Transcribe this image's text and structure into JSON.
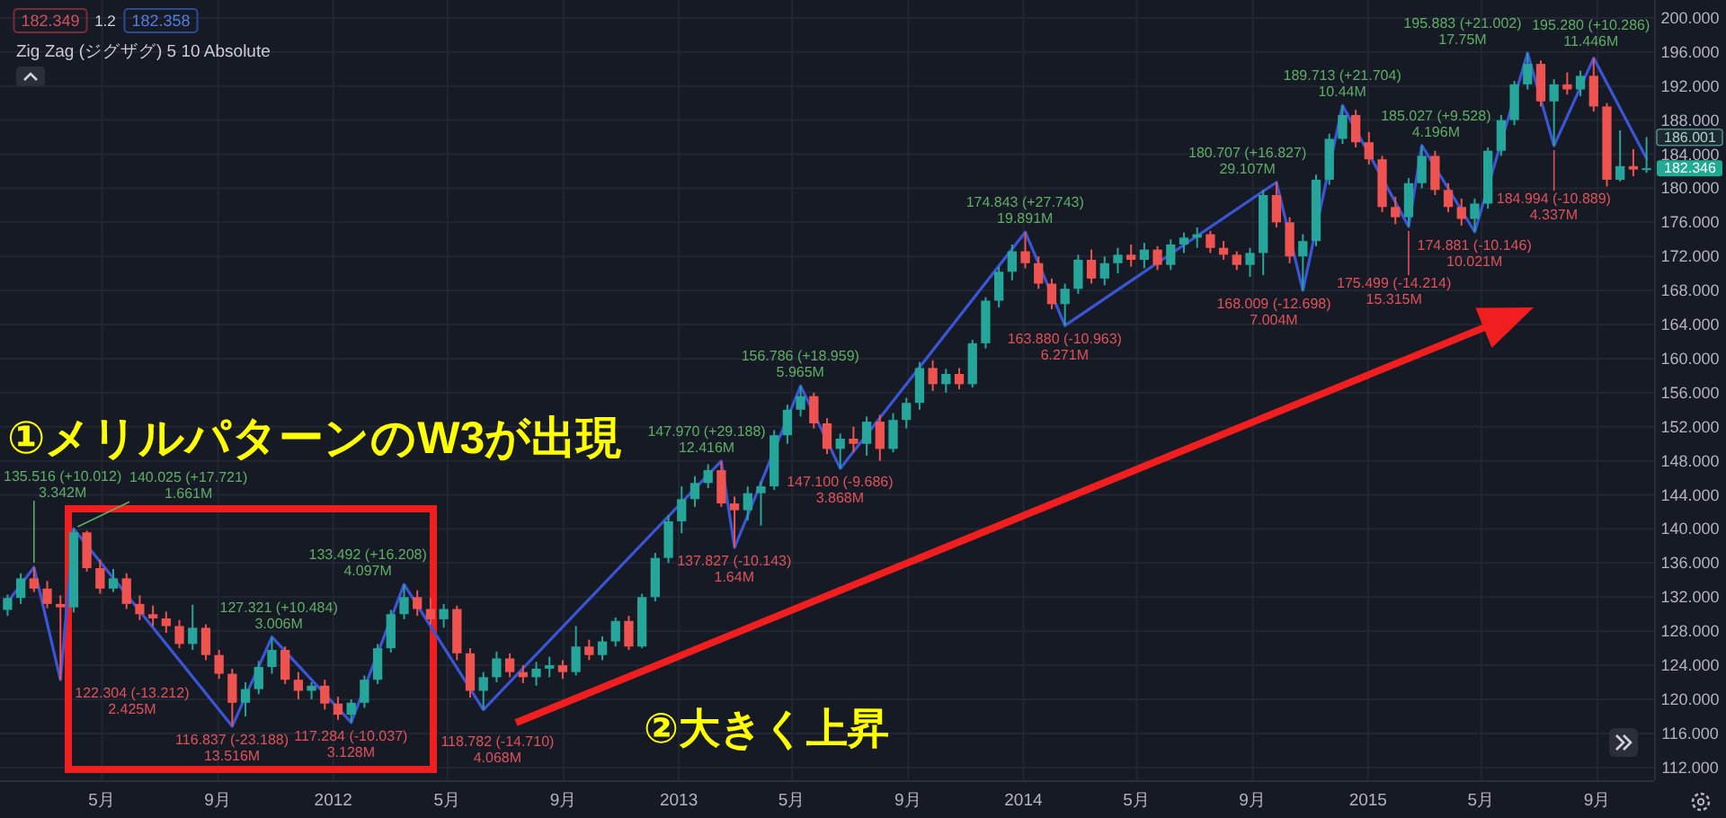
{
  "chart_data": {
    "type": "candlestick",
    "xlim": [
      "2011-01-13",
      "2015-10-31"
    ],
    "ylim": [
      110.5,
      202.1
    ],
    "xticks": [
      {
        "value": "2011-05-01",
        "label": "5月"
      },
      {
        "value": "2011-09-01",
        "label": "9月"
      },
      {
        "value": "2012-01-01",
        "label": "2012"
      },
      {
        "value": "2012-05-01",
        "label": "5月"
      },
      {
        "value": "2012-09-01",
        "label": "9月"
      },
      {
        "value": "2013-01-01",
        "label": "2013"
      },
      {
        "value": "2013-05-01",
        "label": "5月"
      },
      {
        "value": "2013-09-01",
        "label": "9月"
      },
      {
        "value": "2014-01-01",
        "label": "2014"
      },
      {
        "value": "2014-05-01",
        "label": "5月"
      },
      {
        "value": "2014-09-01",
        "label": "9月"
      },
      {
        "value": "2015-01-01",
        "label": "2015"
      },
      {
        "value": "2015-05-01",
        "label": "5月"
      },
      {
        "value": "2015-09-01",
        "label": "9月"
      }
    ],
    "yticks": [
      {
        "value": 112,
        "label": "112.000"
      },
      {
        "value": 116,
        "label": "116.000"
      },
      {
        "value": 120,
        "label": "120.000"
      },
      {
        "value": 124,
        "label": "124.000"
      },
      {
        "value": 128,
        "label": "128.000"
      },
      {
        "value": 132,
        "label": "132.000"
      },
      {
        "value": 136,
        "label": "136.000"
      },
      {
        "value": 140,
        "label": "140.000"
      },
      {
        "value": 144,
        "label": "144.000"
      },
      {
        "value": 148,
        "label": "148.000"
      },
      {
        "value": 152,
        "label": "152.000"
      },
      {
        "value": 156,
        "label": "156.000"
      },
      {
        "value": 160,
        "label": "160.000"
      },
      {
        "value": 164,
        "label": "164.000"
      },
      {
        "value": 168,
        "label": "168.000"
      },
      {
        "value": 172,
        "label": "172.000"
      },
      {
        "value": 176,
        "label": "176.000"
      },
      {
        "value": 180,
        "label": "180.000"
      },
      {
        "value": 184,
        "label": "184.000"
      },
      {
        "value": 188,
        "label": "188.000"
      },
      {
        "value": 192,
        "label": "192.000"
      },
      {
        "value": 196,
        "label": "196.000"
      },
      {
        "value": 200,
        "label": "200.000"
      }
    ],
    "grid": true,
    "series": [
      {
        "type": "candlestick",
        "x": [
          "2011-01-21",
          "2011-02-04",
          "2011-02-18",
          "2011-03-04",
          "2011-03-18",
          "2011-04-01",
          "2011-04-15",
          "2011-04-29",
          "2011-05-13",
          "2011-05-27",
          "2011-06-10",
          "2011-06-24",
          "2011-07-08",
          "2011-07-22",
          "2011-08-05",
          "2011-08-19",
          "2011-09-02",
          "2011-09-16",
          "2011-09-30",
          "2011-10-14",
          "2011-10-28",
          "2011-11-11",
          "2011-11-25",
          "2011-12-09",
          "2011-12-23",
          "2012-01-06",
          "2012-01-20",
          "2012-02-03",
          "2012-02-17",
          "2012-03-02",
          "2012-03-16",
          "2012-03-30",
          "2012-04-13",
          "2012-04-27",
          "2012-05-11",
          "2012-05-25",
          "2012-06-08",
          "2012-06-22",
          "2012-07-06",
          "2012-07-20",
          "2012-08-03",
          "2012-08-17",
          "2012-08-31",
          "2012-09-14",
          "2012-09-28",
          "2012-10-12",
          "2012-10-26",
          "2012-11-09",
          "2012-11-23",
          "2012-12-07",
          "2012-12-21",
          "2013-01-04",
          "2013-01-18",
          "2013-02-01",
          "2013-02-15",
          "2013-03-01",
          "2013-03-15",
          "2013-03-29",
          "2013-04-12",
          "2013-04-26",
          "2013-05-10",
          "2013-05-24",
          "2013-06-07",
          "2013-06-21",
          "2013-07-05",
          "2013-07-19",
          "2013-08-02",
          "2013-08-16",
          "2013-08-30",
          "2013-09-13",
          "2013-09-27",
          "2013-10-11",
          "2013-10-25",
          "2013-11-08",
          "2013-11-22",
          "2013-12-06",
          "2013-12-20",
          "2014-01-03",
          "2014-01-17",
          "2014-01-31",
          "2014-02-14",
          "2014-02-28",
          "2014-03-14",
          "2014-03-28",
          "2014-04-11",
          "2014-04-25",
          "2014-05-09",
          "2014-05-23",
          "2014-06-06",
          "2014-06-20",
          "2014-07-04",
          "2014-07-18",
          "2014-08-01",
          "2014-08-15",
          "2014-08-29",
          "2014-09-12",
          "2014-09-26",
          "2014-10-10",
          "2014-10-24",
          "2014-11-07",
          "2014-11-21",
          "2014-12-05",
          "2014-12-19",
          "2015-01-02",
          "2015-01-16",
          "2015-01-30",
          "2015-02-13",
          "2015-02-27",
          "2015-03-13",
          "2015-03-27",
          "2015-04-10",
          "2015-04-24",
          "2015-05-08",
          "2015-05-22",
          "2015-06-05",
          "2015-06-19",
          "2015-07-03",
          "2015-07-17",
          "2015-07-31",
          "2015-08-14",
          "2015-08-28",
          "2015-09-11",
          "2015-09-25",
          "2015-10-09",
          "2015-10-23"
        ],
        "ohlc": [
          [
            130.5,
            132.3,
            129.8,
            131.9
          ],
          [
            131.9,
            134.8,
            131.2,
            134.2
          ],
          [
            134.2,
            135.516,
            132.6,
            133.0
          ],
          [
            133.0,
            133.9,
            130.7,
            131.2
          ],
          [
            131.2,
            132.2,
            122.304,
            130.8
          ],
          [
            130.8,
            140.025,
            130.2,
            139.6
          ],
          [
            139.6,
            139.8,
            135.0,
            135.4
          ],
          [
            135.4,
            136.4,
            132.4,
            133.0
          ],
          [
            133.0,
            135.3,
            132.6,
            134.2
          ],
          [
            134.2,
            134.8,
            130.6,
            131.2
          ],
          [
            131.2,
            132.2,
            129.3,
            130.0
          ],
          [
            130.0,
            131.0,
            128.6,
            129.5
          ],
          [
            129.5,
            130.3,
            127.8,
            128.6
          ],
          [
            128.6,
            129.3,
            126.0,
            126.5
          ],
          [
            126.5,
            131.1,
            125.8,
            128.4
          ],
          [
            128.4,
            128.8,
            124.6,
            125.2
          ],
          [
            125.2,
            125.8,
            122.4,
            123.0
          ],
          [
            123.0,
            123.6,
            116.837,
            119.6
          ],
          [
            119.6,
            122.0,
            118.0,
            121.2
          ],
          [
            121.2,
            124.5,
            120.6,
            123.8
          ],
          [
            123.8,
            127.321,
            123.0,
            125.8
          ],
          [
            125.8,
            126.2,
            121.8,
            122.3
          ],
          [
            122.3,
            123.2,
            120.0,
            121.0
          ],
          [
            121.0,
            122.0,
            120.0,
            121.6
          ],
          [
            121.6,
            122.3,
            118.8,
            119.5
          ],
          [
            119.5,
            120.3,
            117.6,
            118.2
          ],
          [
            118.2,
            120.0,
            117.284,
            119.6
          ],
          [
            119.6,
            122.8,
            119.0,
            122.3
          ],
          [
            122.3,
            126.5,
            121.8,
            126.0
          ],
          [
            126.0,
            130.5,
            125.5,
            130.0
          ],
          [
            130.0,
            133.492,
            129.4,
            132.0
          ],
          [
            132.0,
            132.8,
            129.8,
            130.6
          ],
          [
            130.6,
            131.9,
            128.8,
            129.4
          ],
          [
            129.4,
            131.2,
            128.4,
            130.6
          ],
          [
            130.6,
            131.0,
            124.6,
            125.4
          ],
          [
            125.4,
            126.0,
            120.2,
            121.0
          ],
          [
            121.0,
            123.2,
            118.782,
            122.6
          ],
          [
            122.6,
            125.6,
            122.0,
            124.8
          ],
          [
            124.8,
            125.4,
            122.6,
            123.2
          ],
          [
            123.2,
            124.0,
            121.9,
            122.6
          ],
          [
            122.6,
            124.4,
            121.6,
            123.6
          ],
          [
            123.6,
            125.0,
            122.6,
            124.0
          ],
          [
            124.0,
            124.6,
            122.4,
            123.2
          ],
          [
            123.2,
            128.6,
            122.8,
            126.2
          ],
          [
            126.2,
            127.0,
            124.6,
            125.2
          ],
          [
            125.2,
            127.4,
            124.6,
            126.8
          ],
          [
            126.8,
            129.6,
            126.2,
            129.2
          ],
          [
            129.2,
            129.8,
            125.8,
            126.2
          ],
          [
            126.2,
            132.4,
            126.0,
            132.0
          ],
          [
            132.0,
            137.2,
            131.5,
            136.6
          ],
          [
            136.6,
            141.6,
            136.0,
            140.9
          ],
          [
            140.9,
            145.0,
            139.5,
            143.5
          ],
          [
            143.5,
            146.2,
            142.6,
            145.4
          ],
          [
            145.4,
            147.6,
            144.8,
            146.9
          ],
          [
            146.9,
            147.97,
            142.6,
            143.0
          ],
          [
            143.0,
            143.8,
            137.827,
            142.2
          ],
          [
            142.2,
            145.0,
            141.0,
            144.2
          ],
          [
            144.2,
            145.6,
            140.4,
            145.0
          ],
          [
            145.0,
            151.6,
            144.6,
            151.0
          ],
          [
            151.0,
            154.6,
            150.0,
            154.0
          ],
          [
            154.0,
            156.786,
            153.2,
            155.6
          ],
          [
            155.6,
            156.0,
            151.8,
            152.4
          ],
          [
            152.4,
            153.0,
            148.8,
            149.4
          ],
          [
            149.4,
            151.2,
            147.1,
            150.6
          ],
          [
            150.6,
            152.0,
            149.0,
            150.0
          ],
          [
            150.0,
            153.2,
            148.6,
            152.6
          ],
          [
            152.6,
            153.4,
            148.0,
            149.4
          ],
          [
            149.4,
            153.6,
            149.0,
            152.8
          ],
          [
            152.8,
            155.4,
            151.8,
            154.8
          ],
          [
            154.8,
            159.6,
            154.0,
            158.9
          ],
          [
            158.9,
            159.8,
            156.2,
            157.0
          ],
          [
            157.0,
            158.8,
            156.0,
            158.2
          ],
          [
            158.2,
            158.9,
            156.4,
            157.0
          ],
          [
            157.0,
            162.2,
            156.6,
            161.8
          ],
          [
            161.8,
            167.2,
            161.2,
            166.8
          ],
          [
            166.8,
            170.8,
            166.0,
            170.2
          ],
          [
            170.2,
            173.4,
            169.2,
            172.6
          ],
          [
            172.6,
            174.843,
            170.6,
            171.2
          ],
          [
            171.2,
            172.0,
            168.2,
            168.8
          ],
          [
            168.8,
            169.4,
            165.8,
            166.4
          ],
          [
            166.4,
            168.8,
            163.88,
            168.2
          ],
          [
            168.2,
            172.2,
            167.6,
            171.6
          ],
          [
            171.6,
            172.8,
            168.8,
            169.4
          ],
          [
            169.4,
            172.0,
            168.6,
            171.2
          ],
          [
            171.2,
            173.0,
            170.0,
            172.2
          ],
          [
            172.2,
            173.4,
            170.8,
            171.6
          ],
          [
            171.6,
            173.6,
            170.6,
            172.8
          ],
          [
            172.8,
            173.2,
            170.4,
            171.0
          ],
          [
            171.0,
            174.0,
            170.4,
            173.4
          ],
          [
            173.4,
            174.8,
            172.4,
            174.2
          ],
          [
            174.2,
            175.4,
            173.0,
            174.6
          ],
          [
            174.6,
            175.0,
            172.4,
            173.0
          ],
          [
            173.0,
            173.8,
            171.6,
            172.2
          ],
          [
            172.2,
            172.6,
            170.4,
            171.0
          ],
          [
            171.0,
            173.0,
            169.6,
            172.4
          ],
          [
            172.4,
            179.8,
            169.8,
            179.2
          ],
          [
            179.2,
            180.707,
            175.4,
            176.0
          ],
          [
            176.0,
            176.6,
            171.2,
            172.0
          ],
          [
            172.0,
            174.6,
            168.009,
            173.8
          ],
          [
            173.8,
            181.6,
            173.2,
            181.0
          ],
          [
            181.0,
            186.4,
            180.4,
            185.8
          ],
          [
            185.8,
            189.713,
            185.2,
            188.6
          ],
          [
            188.6,
            189.2,
            184.8,
            185.4
          ],
          [
            185.4,
            186.6,
            182.8,
            183.4
          ],
          [
            183.4,
            183.8,
            177.2,
            177.8
          ],
          [
            177.8,
            179.0,
            175.8,
            176.6
          ],
          [
            176.6,
            181.2,
            175.499,
            180.6
          ],
          [
            180.6,
            185.027,
            180.0,
            183.8
          ],
          [
            183.8,
            184.4,
            179.2,
            179.8
          ],
          [
            179.8,
            180.6,
            177.2,
            177.8
          ],
          [
            177.8,
            178.8,
            175.6,
            176.4
          ],
          [
            176.4,
            178.8,
            174.881,
            178.2
          ],
          [
            178.2,
            184.8,
            177.6,
            184.4
          ],
          [
            184.4,
            188.6,
            183.8,
            188.0
          ],
          [
            188.0,
            192.6,
            187.4,
            192.2
          ],
          [
            192.2,
            195.883,
            191.6,
            194.6
          ],
          [
            194.6,
            195.0,
            189.6,
            190.2
          ],
          [
            190.2,
            192.8,
            184.994,
            192.2
          ],
          [
            192.2,
            193.6,
            191.0,
            191.6
          ],
          [
            191.6,
            193.8,
            190.8,
            193.2
          ],
          [
            193.2,
            195.28,
            189.0,
            189.6
          ],
          [
            189.6,
            190.0,
            180.2,
            181.0
          ],
          [
            181.0,
            186.8,
            180.8,
            182.6
          ],
          [
            182.6,
            184.6,
            181.4,
            182.2
          ],
          [
            182.2,
            186.0,
            181.8,
            182.346
          ]
        ],
        "colors": [
          "#26a69a",
          "#26a69a",
          "#ef5350",
          "#ef5350",
          "#ef5350",
          "#26a69a",
          "#ef5350",
          "#ef5350",
          "#26a69a",
          "#ef5350",
          "#ef5350",
          "#ef5350",
          "#ef5350",
          "#ef5350",
          "#26a69a",
          "#ef5350",
          "#ef5350",
          "#ef5350",
          "#26a69a",
          "#26a69a",
          "#26a69a",
          "#ef5350",
          "#ef5350",
          "#26a69a",
          "#ef5350",
          "#ef5350",
          "#26a69a",
          "#26a69a",
          "#26a69a",
          "#26a69a",
          "#26a69a",
          "#ef5350",
          "#ef5350",
          "#26a69a",
          "#ef5350",
          "#ef5350",
          "#26a69a",
          "#26a69a",
          "#ef5350",
          "#ef5350",
          "#26a69a",
          "#26a69a",
          "#ef5350",
          "#26a69a",
          "#ef5350",
          "#26a69a",
          "#26a69a",
          "#ef5350",
          "#26a69a",
          "#26a69a",
          "#26a69a",
          "#26a69a",
          "#26a69a",
          "#26a69a",
          "#ef5350",
          "#ef5350",
          "#26a69a",
          "#26a69a",
          "#26a69a",
          "#26a69a",
          "#26a69a",
          "#ef5350",
          "#ef5350",
          "#26a69a",
          "#ef5350",
          "#26a69a",
          "#ef5350",
          "#26a69a",
          "#26a69a",
          "#26a69a",
          "#ef5350",
          "#26a69a",
          "#ef5350",
          "#26a69a",
          "#26a69a",
          "#26a69a",
          "#26a69a",
          "#ef5350",
          "#ef5350",
          "#ef5350",
          "#26a69a",
          "#26a69a",
          "#ef5350",
          "#26a69a",
          "#26a69a",
          "#ef5350",
          "#26a69a",
          "#ef5350",
          "#26a69a",
          "#26a69a",
          "#26a69a",
          "#ef5350",
          "#ef5350",
          "#ef5350",
          "#26a69a",
          "#26a69a",
          "#ef5350",
          "#ef5350",
          "#26a69a",
          "#26a69a",
          "#26a69a",
          "#26a69a",
          "#ef5350",
          "#ef5350",
          "#ef5350",
          "#ef5350",
          "#26a69a",
          "#26a69a",
          "#ef5350",
          "#ef5350",
          "#ef5350",
          "#26a69a",
          "#26a69a",
          "#26a69a",
          "#26a69a",
          "#26a69a",
          "#ef5350",
          "#26a69a",
          "#ef5350",
          "#26a69a",
          "#ef5350",
          "#ef5350",
          "#26a69a",
          "#ef5350",
          "#26a69a"
        ]
      },
      {
        "type": "line",
        "color": "#3a55d6",
        "x": [
          "2011-01-21",
          "2011-02-18",
          "2011-03-18",
          "2011-04-01",
          "2011-09-16",
          "2011-10-28",
          "2012-01-20",
          "2012-03-16",
          "2012-06-08",
          "2013-02-15",
          "2013-03-01",
          "2013-05-10",
          "2013-06-21",
          "2014-01-03",
          "2014-02-14",
          "2014-09-26",
          "2014-10-24",
          "2014-12-05",
          "2015-02-13",
          "2015-02-27",
          "2015-04-24",
          "2015-06-19",
          "2015-07-17",
          "2015-08-28",
          "2015-10-23"
        ],
        "values": [
          131.4,
          135.516,
          122.304,
          140.025,
          116.837,
          127.321,
          117.284,
          133.492,
          118.782,
          147.97,
          137.827,
          156.786,
          147.1,
          174.843,
          163.88,
          180.707,
          168.009,
          189.713,
          175.499,
          185.027,
          174.881,
          195.883,
          184.994,
          195.28,
          183.5
        ]
      }
    ],
    "annotations": [
      "182.349",
      "1.2",
      "182.358",
      "Zig Zag (ジグザグ) 5 10 Absolute",
      "①メリルパターンのW3が出現",
      "②大きく上昇",
      "186.001",
      "182.346",
      {
        "text": "135.516 (+10.012)\n3.342M",
        "x": "2011-02-18",
        "y": 135.516
      },
      {
        "text": "122.304 (-13.212)\n2.425M",
        "x": "2011-03-18",
        "y": 122.304
      },
      {
        "text": "140.025 (+17.721)\n1.661M",
        "x": "2011-04-01",
        "y": 140.025
      },
      {
        "text": "116.837 (-23.188)\n13.516M",
        "x": "2011-09-16",
        "y": 116.837
      },
      {
        "text": "127.321 (+10.484)\n3.006M",
        "x": "2011-10-28",
        "y": 127.321
      },
      {
        "text": "117.284 (-10.037)\n3.128M",
        "x": "2012-01-20",
        "y": 117.284
      },
      {
        "text": "133.492 (+16.208)\n4.097M",
        "x": "2012-03-16",
        "y": 133.492
      },
      {
        "text": "118.782 (-14.710)\n4.068M",
        "x": "2012-06-08",
        "y": 118.782
      },
      {
        "text": "147.970 (+29.188)\n12.416M",
        "x": "2013-02-15",
        "y": 147.97
      },
      {
        "text": "137.827 (-10.143)\n1.64M",
        "x": "2013-03-01",
        "y": 137.827
      },
      {
        "text": "156.786 (+18.959)\n5.965M",
        "x": "2013-05-10",
        "y": 156.786
      },
      {
        "text": "147.100 (-9.686)\n3.868M",
        "x": "2013-06-21",
        "y": 147.1
      },
      {
        "text": "174.843 (+27.743)\n19.891M",
        "x": "2014-01-03",
        "y": 174.843
      },
      {
        "text": "163.880 (-10.963)\n6.271M",
        "x": "2014-02-14",
        "y": 163.88
      },
      {
        "text": "180.707 (+16.827)\n29.107M",
        "x": "2014-09-26",
        "y": 180.707
      },
      {
        "text": "168.009 (-12.698)\n7.004M",
        "x": "2014-10-24",
        "y": 168.009
      },
      {
        "text": "189.713 (+21.704)\n10.44M",
        "x": "2014-12-05",
        "y": 189.713
      },
      {
        "text": "175.499 (-14.214)\n15.315M",
        "x": "2015-02-13",
        "y": 175.499
      },
      {
        "text": "185.027 (+9.528)\n4.196M",
        "x": "2015-02-27",
        "y": 185.027
      },
      {
        "text": "174.881 (-10.146)\n10.021M",
        "x": "2015-04-24",
        "y": 174.881
      },
      {
        "text": "195.883 (+21.002)\n17.75M",
        "x": "2015-06-19",
        "y": 195.883
      },
      {
        "text": "184.994 (-10.889)\n4.337M",
        "x": "2015-07-17",
        "y": 184.994
      },
      {
        "text": "195.280 (+10.286)\n11.446M",
        "x": "2015-08-28",
        "y": 195.28
      }
    ]
  }
}
